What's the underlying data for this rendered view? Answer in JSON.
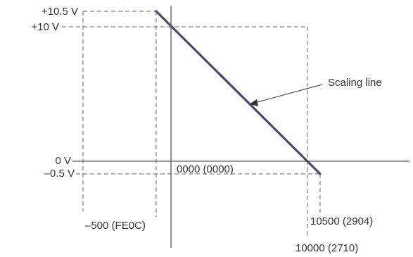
{
  "diagram": {
    "y_labels": {
      "v_plus_10_5": "+10.5 V",
      "v_plus_10": "+10 V",
      "v_zero": "0 V",
      "v_minus_0_5": "–0.5 V"
    },
    "x_labels": {
      "origin": "0000 (0000)",
      "minus_500": "–500 (FE0C)",
      "x_10000": "10000 (2710)",
      "x_10500": "10500 (2904)"
    },
    "annotation": "Scaling line",
    "colors": {
      "scaling_line": "#4a4a6e",
      "axes": "#555555",
      "dashed": "#666666",
      "text": "#333333"
    }
  }
}
